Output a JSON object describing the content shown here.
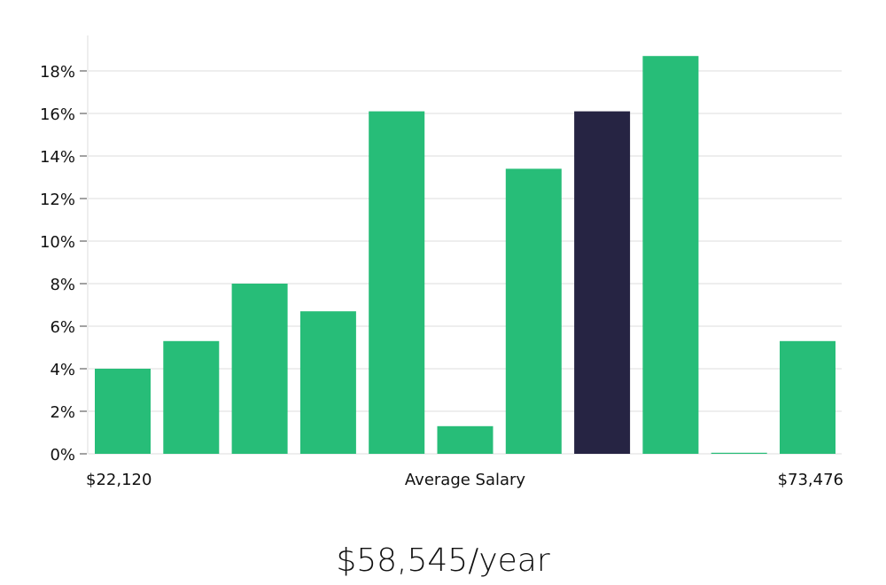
{
  "chart_data": {
    "type": "bar",
    "title": "",
    "xlabel": "Average Salary",
    "ylabel": "",
    "x_min_label": "$22,120",
    "x_max_label": "$73,476",
    "ylim": [
      0,
      19.5
    ],
    "yticks": [
      0,
      2,
      4,
      6,
      8,
      10,
      12,
      14,
      16,
      18
    ],
    "ytick_labels": [
      "0%",
      "2%",
      "4%",
      "6%",
      "8%",
      "10%",
      "12%",
      "14%",
      "16%",
      "18%"
    ],
    "grid": true,
    "values": [
      4.0,
      5.3,
      8.0,
      6.7,
      16.1,
      1.3,
      13.4,
      16.1,
      18.7,
      0.05,
      5.3
    ],
    "highlight_index": 7,
    "colors": {
      "bar": "#27bd78",
      "highlight": "#262443",
      "grid": "#dcdcdc"
    }
  },
  "summary": {
    "average_salary": "$58,545/year"
  }
}
